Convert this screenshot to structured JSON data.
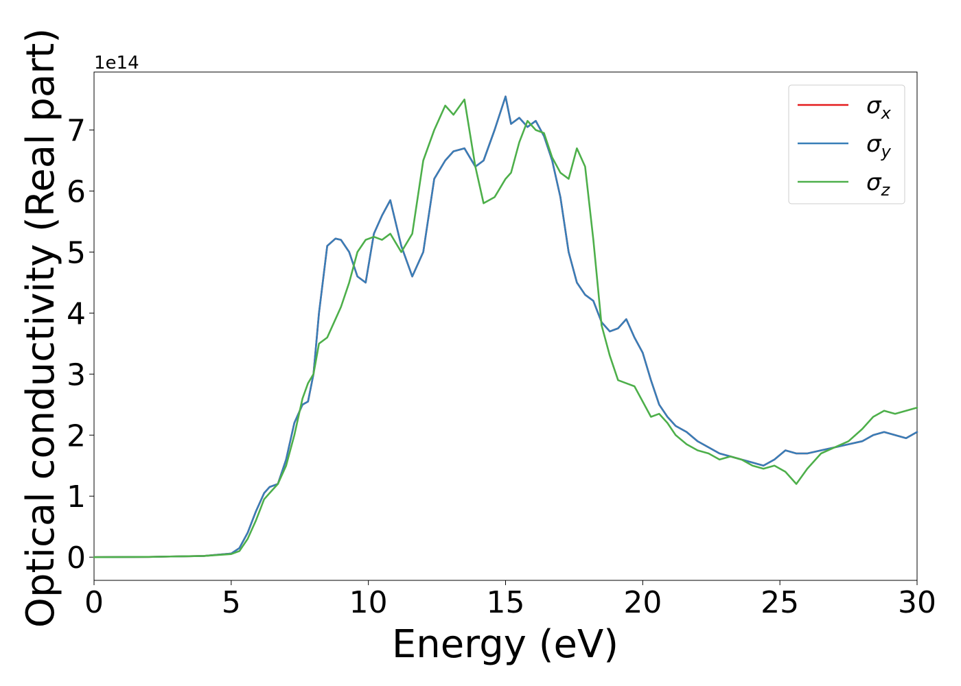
{
  "chart_data": {
    "type": "line",
    "title": "",
    "xlabel": "Energy (eV)",
    "ylabel": "Optical conductivity (Real part)",
    "y_offset_label": "1e14",
    "xlim": [
      0,
      30
    ],
    "ylim": [
      -0.38,
      7.95
    ],
    "x_ticks": [
      0,
      5,
      10,
      15,
      20,
      25,
      30
    ],
    "x_tick_labels": [
      "0",
      "5",
      "10",
      "15",
      "20",
      "25",
      "30"
    ],
    "y_ticks": [
      0,
      1,
      2,
      3,
      4,
      5,
      6,
      7
    ],
    "y_tick_labels": [
      "0",
      "1",
      "2",
      "3",
      "4",
      "5",
      "6",
      "7"
    ],
    "grid": false,
    "legend_position": "top-right",
    "x": [
      0,
      2,
      4,
      5,
      5.3,
      5.6,
      5.9,
      6.2,
      6.4,
      6.7,
      7.0,
      7.3,
      7.6,
      7.8,
      8.0,
      8.2,
      8.5,
      8.8,
      9.0,
      9.3,
      9.6,
      9.9,
      10.2,
      10.5,
      10.8,
      11.2,
      11.6,
      12.0,
      12.4,
      12.8,
      13.1,
      13.5,
      13.9,
      14.2,
      14.6,
      15.0,
      15.2,
      15.5,
      15.8,
      16.1,
      16.4,
      16.7,
      17.0,
      17.3,
      17.6,
      17.9,
      18.2,
      18.5,
      18.8,
      19.1,
      19.4,
      19.7,
      20.0,
      20.3,
      20.6,
      20.9,
      21.2,
      21.6,
      22.0,
      22.4,
      22.8,
      23.2,
      23.6,
      24.0,
      24.4,
      24.8,
      25.2,
      25.6,
      26.0,
      26.5,
      27.0,
      27.5,
      28.0,
      28.4,
      28.8,
      29.2,
      29.6,
      30.0
    ],
    "series": [
      {
        "name": "σ_x",
        "symbol": "σ",
        "subscript": "x",
        "color": "#e41a1c",
        "values": [
          0,
          0.005,
          0.02,
          0.06,
          0.15,
          0.4,
          0.75,
          1.05,
          1.15,
          1.2,
          1.6,
          2.2,
          2.5,
          2.55,
          3.0,
          4.0,
          5.1,
          5.22,
          5.2,
          5.0,
          4.6,
          4.5,
          5.3,
          5.6,
          5.85,
          5.1,
          4.6,
          5.0,
          6.2,
          6.5,
          6.65,
          6.7,
          6.4,
          6.5,
          7.0,
          7.55,
          7.1,
          7.2,
          7.05,
          7.15,
          6.9,
          6.5,
          5.9,
          5.0,
          4.5,
          4.3,
          4.2,
          3.85,
          3.7,
          3.75,
          3.9,
          3.6,
          3.35,
          2.9,
          2.5,
          2.3,
          2.15,
          2.05,
          1.9,
          1.8,
          1.7,
          1.65,
          1.6,
          1.55,
          1.5,
          1.6,
          1.75,
          1.7,
          1.7,
          1.75,
          1.8,
          1.85,
          1.9,
          2.0,
          2.05,
          2.0,
          1.95,
          2.05
        ]
      },
      {
        "name": "σ_y",
        "symbol": "σ",
        "subscript": "y",
        "color": "#377eb8",
        "values": [
          0,
          0.005,
          0.02,
          0.06,
          0.15,
          0.4,
          0.75,
          1.05,
          1.15,
          1.2,
          1.6,
          2.2,
          2.5,
          2.55,
          3.0,
          4.0,
          5.1,
          5.22,
          5.2,
          5.0,
          4.6,
          4.5,
          5.3,
          5.6,
          5.85,
          5.1,
          4.6,
          5.0,
          6.2,
          6.5,
          6.65,
          6.7,
          6.4,
          6.5,
          7.0,
          7.55,
          7.1,
          7.2,
          7.05,
          7.15,
          6.9,
          6.5,
          5.9,
          5.0,
          4.5,
          4.3,
          4.2,
          3.85,
          3.7,
          3.75,
          3.9,
          3.6,
          3.35,
          2.9,
          2.5,
          2.3,
          2.15,
          2.05,
          1.9,
          1.8,
          1.7,
          1.65,
          1.6,
          1.55,
          1.5,
          1.6,
          1.75,
          1.7,
          1.7,
          1.75,
          1.8,
          1.85,
          1.9,
          2.0,
          2.05,
          2.0,
          1.95,
          2.05
        ]
      },
      {
        "name": "σ_z",
        "symbol": "σ",
        "subscript": "z",
        "color": "#4daf4a",
        "values": [
          0,
          0.005,
          0.02,
          0.05,
          0.1,
          0.3,
          0.6,
          0.95,
          1.05,
          1.2,
          1.5,
          2.0,
          2.6,
          2.85,
          3.0,
          3.5,
          3.6,
          3.9,
          4.1,
          4.5,
          5.0,
          5.2,
          5.25,
          5.2,
          5.3,
          5.0,
          5.3,
          6.5,
          7.0,
          7.4,
          7.25,
          7.5,
          6.4,
          5.8,
          5.9,
          6.2,
          6.3,
          6.8,
          7.15,
          7.0,
          6.95,
          6.55,
          6.3,
          6.2,
          6.7,
          6.4,
          5.2,
          3.8,
          3.3,
          2.9,
          2.85,
          2.8,
          2.55,
          2.3,
          2.35,
          2.2,
          2.0,
          1.85,
          1.75,
          1.7,
          1.6,
          1.65,
          1.6,
          1.5,
          1.45,
          1.5,
          1.4,
          1.2,
          1.45,
          1.7,
          1.8,
          1.9,
          2.1,
          2.3,
          2.4,
          2.35,
          2.4,
          2.45
        ]
      }
    ]
  }
}
